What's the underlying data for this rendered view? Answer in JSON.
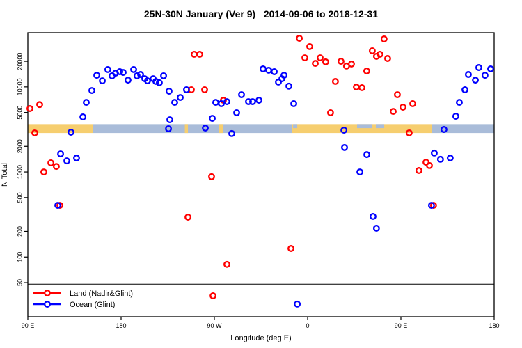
{
  "title": "25N-30N January (Ver 9)   2014-09-06 to 2018-12-31",
  "chart_data": {
    "type": "scatter",
    "title": "25N-30N January (Ver 9)   2014-09-06 to 2018-12-31",
    "xlabel": "Longitude (deg E)",
    "ylabel": "N Total",
    "x_axis": {
      "range": [
        90,
        540
      ],
      "ticks": [
        {
          "lon": 90,
          "label": "90 E"
        },
        {
          "lon": 180,
          "label": "180"
        },
        {
          "lon": 270,
          "label": "90 W"
        },
        {
          "lon": 360,
          "label": "0"
        },
        {
          "lon": 450,
          "label": "90 E"
        },
        {
          "lon": 540,
          "label": "180"
        }
      ]
    },
    "y_axis": {
      "scale": "log",
      "range": [
        20,
        43000
      ],
      "ticks": [
        {
          "v": 50,
          "label": "50"
        },
        {
          "v": 100,
          "label": "100"
        },
        {
          "v": 200,
          "label": "200"
        },
        {
          "v": 500,
          "label": "500"
        },
        {
          "v": 1000,
          "label": "1000"
        },
        {
          "v": 2000,
          "label": "2000"
        },
        {
          "v": 5000,
          "label": "5000"
        },
        {
          "v": 10000,
          "label": "10000"
        },
        {
          "v": 20000,
          "label": "20000"
        }
      ]
    },
    "reference_line_n": 48,
    "band": {
      "n_top": 3650,
      "n_bottom": 2870,
      "land_color": "#f6ce6f",
      "ocean_color": "#a9bcd9",
      "segments": [
        {
          "from": 90,
          "to": 153,
          "type": "land"
        },
        {
          "from": 153,
          "to": 345,
          "type": "ocean"
        },
        {
          "from": 345,
          "to": 480,
          "type": "land"
        },
        {
          "from": 480,
          "to": 540,
          "type": "ocean"
        }
      ],
      "overlays": [
        {
          "from": 241.5,
          "to": 244.5,
          "type": "land"
        },
        {
          "from": 274.5,
          "to": 278.5,
          "type": "land"
        },
        {
          "from": 346,
          "to": 350,
          "type": "ocean_top"
        },
        {
          "from": 407.7,
          "to": 422.5,
          "type": "ocean_top"
        },
        {
          "from": 425.8,
          "to": 433.9,
          "type": "ocean_top"
        }
      ]
    },
    "legend": {
      "position": "bottom-left"
    },
    "series": [
      {
        "name": "Land (Nadir&Glint)",
        "color": "#ff0000",
        "points": [
          [
            92,
            5560
          ],
          [
            101.4,
            6200
          ],
          [
            96.7,
            2880
          ],
          [
            105.4,
            1000
          ],
          [
            112.2,
            1280
          ],
          [
            117.5,
            1160
          ],
          [
            120.9,
            405
          ],
          [
            244.5,
            294
          ],
          [
            250.5,
            24200
          ],
          [
            255.9,
            24200
          ],
          [
            247.8,
            9250
          ],
          [
            260.6,
            9250
          ],
          [
            267.3,
            880
          ],
          [
            268.7,
            35
          ],
          [
            278.7,
            6970
          ],
          [
            282.1,
            82
          ],
          [
            343.9,
            126
          ],
          [
            352,
            37300
          ],
          [
            357.3,
            22000
          ],
          [
            362,
            29800
          ],
          [
            367.4,
            18900
          ],
          [
            372.1,
            22000
          ],
          [
            377.4,
            19700
          ],
          [
            382.1,
            4970
          ],
          [
            386.8,
            11600
          ],
          [
            392.2,
            20000
          ],
          [
            397.5,
            17600
          ],
          [
            402.3,
            18600
          ],
          [
            407,
            9980
          ],
          [
            412.4,
            9790
          ],
          [
            417,
            15400
          ],
          [
            422.4,
            26600
          ],
          [
            426.4,
            22900
          ],
          [
            429.8,
            24200
          ],
          [
            433.8,
            36600
          ],
          [
            437.2,
            21600
          ],
          [
            442.6,
            5150
          ],
          [
            446.6,
            8100
          ],
          [
            452,
            5770
          ],
          [
            458,
            2880
          ],
          [
            461.4,
            6350
          ],
          [
            467.4,
            1040
          ],
          [
            474.2,
            1300
          ],
          [
            477.5,
            1190
          ],
          [
            481.5,
            405
          ]
        ]
      },
      {
        "name": "Ocean (Glint)",
        "color": "#0000ff",
        "points": [
          [
            118.9,
            405
          ],
          [
            121.6,
            1630
          ],
          [
            127.6,
            1350
          ],
          [
            131.6,
            2930
          ],
          [
            137,
            1460
          ],
          [
            143.1,
            4440
          ],
          [
            146.4,
            6580
          ],
          [
            151.8,
            9070
          ],
          [
            156.5,
            13700
          ],
          [
            161.9,
            11800
          ],
          [
            167.2,
            16000
          ],
          [
            171.3,
            13500
          ],
          [
            174.6,
            14500
          ],
          [
            178.7,
            15100
          ],
          [
            182,
            14800
          ],
          [
            186.7,
            12000
          ],
          [
            192.1,
            16000
          ],
          [
            195.4,
            13500
          ],
          [
            198.8,
            14000
          ],
          [
            202.8,
            12500
          ],
          [
            205.5,
            11800
          ],
          [
            210.9,
            12500
          ],
          [
            213.6,
            11600
          ],
          [
            216.9,
            11200
          ],
          [
            221,
            13500
          ],
          [
            226.3,
            8900
          ],
          [
            227,
            4110
          ],
          [
            225.7,
            3220
          ],
          [
            231.7,
            6580
          ],
          [
            237.1,
            7510
          ],
          [
            243.1,
            9250
          ],
          [
            261.3,
            3280
          ],
          [
            268,
            4270
          ],
          [
            271.3,
            6580
          ],
          [
            276.7,
            6350
          ],
          [
            282.1,
            6710
          ],
          [
            286.8,
            2830
          ],
          [
            291.5,
            4970
          ],
          [
            296.2,
            8100
          ],
          [
            302.9,
            6710
          ],
          [
            306.9,
            6710
          ],
          [
            313,
            6970
          ],
          [
            317,
            16300
          ],
          [
            322.4,
            15700
          ],
          [
            327.8,
            15100
          ],
          [
            331.8,
            11400
          ],
          [
            335.2,
            12500
          ],
          [
            337.2,
            13700
          ],
          [
            341.9,
            10200
          ],
          [
            346.6,
            6350
          ],
          [
            395,
            3100
          ],
          [
            395.6,
            1940
          ],
          [
            410.4,
            1000
          ],
          [
            417.1,
            1600
          ],
          [
            423.1,
            300
          ],
          [
            426.4,
            218
          ],
          [
            479.5,
            405
          ],
          [
            482.2,
            1670
          ],
          [
            488.2,
            1410
          ],
          [
            497.6,
            1460
          ],
          [
            491.6,
            3160
          ],
          [
            503,
            4520
          ],
          [
            506.4,
            6580
          ],
          [
            511.8,
            9250
          ],
          [
            515.1,
            14000
          ],
          [
            521.9,
            12000
          ],
          [
            525.2,
            16900
          ],
          [
            531.2,
            13700
          ],
          [
            536.6,
            16300
          ],
          [
            350,
            28
          ]
        ]
      }
    ]
  }
}
